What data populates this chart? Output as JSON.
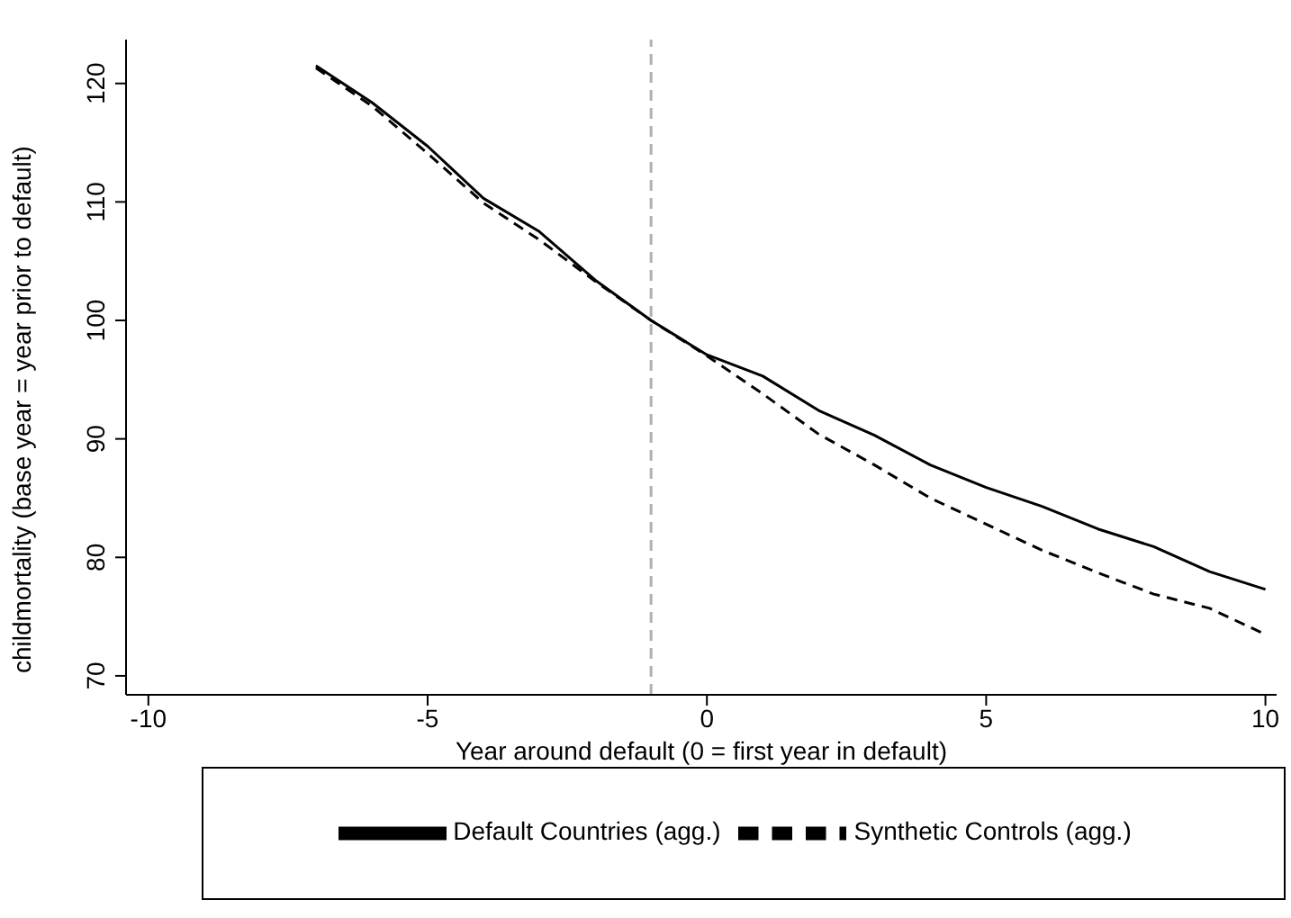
{
  "chart_data": {
    "type": "line",
    "xlabel": "Year around default (0 = first year in default)",
    "ylabel": "childmortality (base year = year prior to default)",
    "x": [
      -7,
      -6,
      -5,
      -4,
      -3,
      -2,
      -1,
      0,
      1,
      2,
      3,
      4,
      5,
      6,
      7,
      8,
      9,
      10
    ],
    "series": [
      {
        "name": "Default Countries (agg.)",
        "color": "#000000",
        "line_style": "solid",
        "values": [
          121.5,
          118.4,
          114.7,
          110.3,
          107.5,
          103.4,
          100,
          97.1,
          95.3,
          92.4,
          90.3,
          87.8,
          85.9,
          84.3,
          82.4,
          80.9,
          78.8,
          77.3
        ]
      },
      {
        "name": "Synthetic Controls (agg.)",
        "color": "#000000",
        "line_style": "dashed",
        "values": [
          121.3,
          118.1,
          114.1,
          109.9,
          106.8,
          103.3,
          100,
          97.0,
          93.8,
          90.4,
          87.8,
          85.0,
          82.8,
          80.6,
          78.7,
          76.9,
          75.7,
          73.5
        ]
      }
    ],
    "xlim": [
      -10.4,
      10.2
    ],
    "xticks": [
      -10,
      -5,
      0,
      5,
      10
    ],
    "ylim": [
      68.4,
      123.7
    ],
    "yticks": [
      70,
      80,
      90,
      100,
      110,
      120
    ],
    "ref_lines": [
      {
        "axis": "x",
        "value": -1,
        "color": "#b0b0b0",
        "line_style": "dashed"
      }
    ],
    "grid": false,
    "legend": "bottom",
    "marker": "none"
  }
}
